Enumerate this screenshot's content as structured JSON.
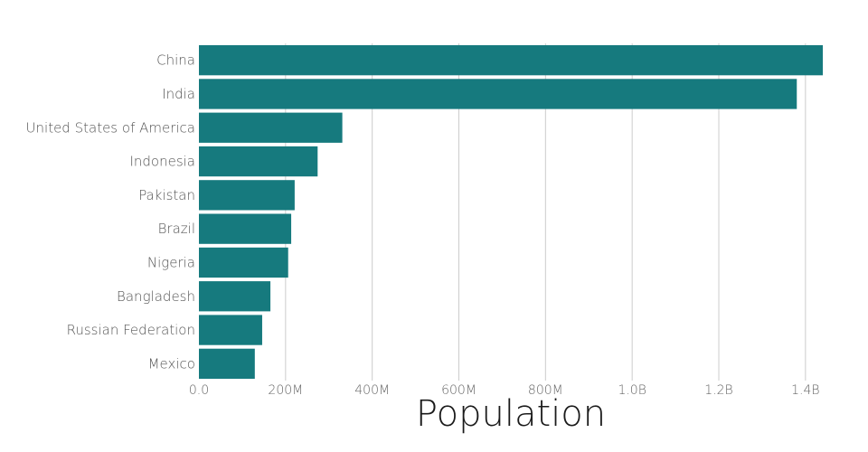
{
  "chart_data": {
    "type": "bar",
    "orientation": "horizontal",
    "categories": [
      "China",
      "India",
      "United States of America",
      "Indonesia",
      "Pakistan",
      "Brazil",
      "Nigeria",
      "Bangladesh",
      "Russian Federation",
      "Mexico"
    ],
    "values": [
      1440000000,
      1380000000,
      331000000,
      274000000,
      221000000,
      213000000,
      206000000,
      165000000,
      146000000,
      129000000
    ],
    "xlabel": "Population",
    "xlim": [
      0,
      1440000000
    ],
    "x_ticks": [
      0,
      200000000,
      400000000,
      600000000,
      800000000,
      1000000000,
      1200000000,
      1400000000
    ],
    "x_tick_labels": [
      "0.0",
      "200M",
      "400M",
      "600M",
      "800M",
      "1.0B",
      "1.2B",
      "1.4B"
    ],
    "grid": "vertical",
    "bar_color": "#167a7e"
  }
}
